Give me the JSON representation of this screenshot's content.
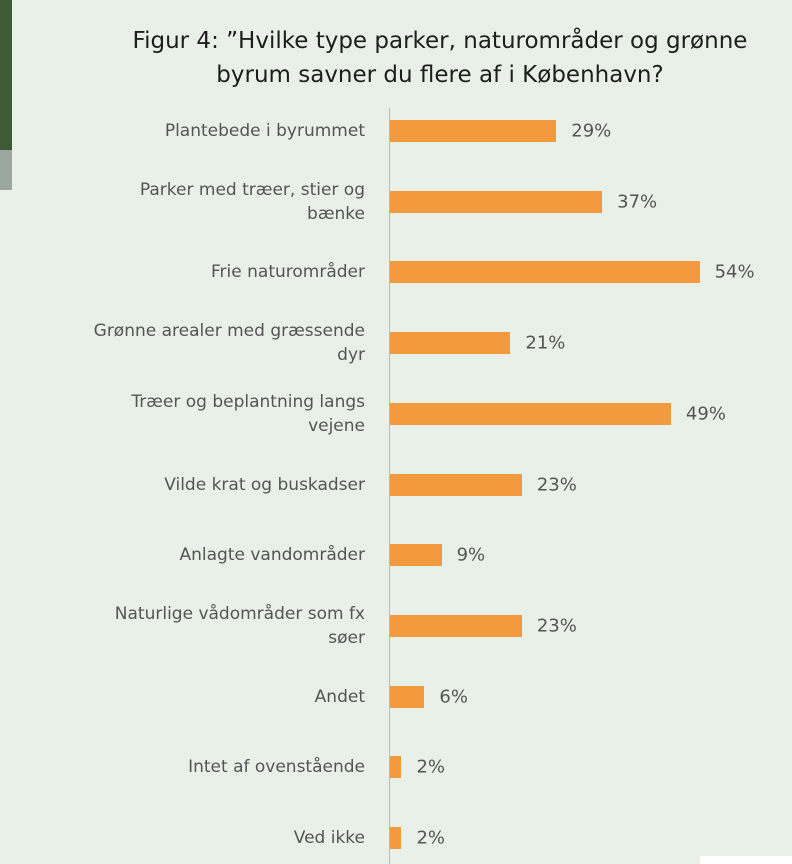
{
  "chart_data": {
    "type": "bar",
    "orientation": "horizontal",
    "title": "Figur 4: ”Hvilke type parker, naturområder og grønne\nbyrum savner du flere af i København?",
    "categories": [
      "Plantebede i byrummet",
      "Parker med træer, stier og\nbænke",
      "Frie naturområder",
      "Grønne arealer med græssende\ndyr",
      "Træer og beplantning langs\nvejene",
      "Vilde krat og buskadser",
      "Anlagte vandområder",
      "Naturlige vådområder som fx\nsøer",
      "Andet",
      "Intet af ovenstående",
      "Ved ikke"
    ],
    "values": [
      29,
      37,
      54,
      21,
      49,
      23,
      9,
      23,
      6,
      2,
      2
    ],
    "value_labels": [
      "29%",
      "37%",
      "54%",
      "21%",
      "49%",
      "23%",
      "9%",
      "23%",
      "6%",
      "2%",
      "2%"
    ],
    "color": "#f29a3d",
    "xlim": [
      0,
      60
    ]
  }
}
